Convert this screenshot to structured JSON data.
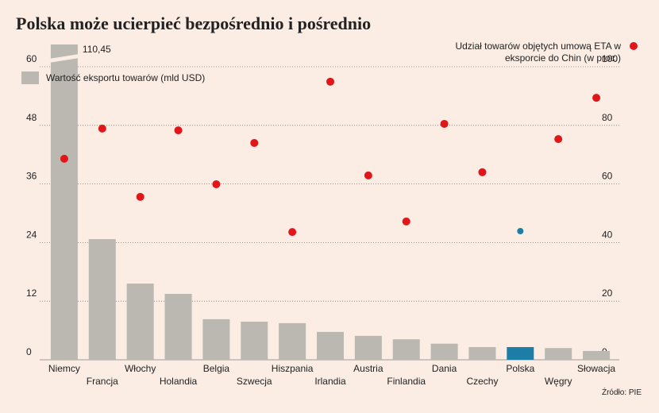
{
  "chart_data": {
    "type": "bar",
    "title": "Polska może ucierpieć bezpośrednio i pośrednio",
    "source": "Źródło: PIE",
    "categories": [
      "Niemcy",
      "Francja",
      "Włochy",
      "Holandia",
      "Belgia",
      "Szwecja",
      "Hiszpania",
      "Irlandia",
      "Austria",
      "Finlandia",
      "Dania",
      "Czechy",
      "Polska",
      "Węgry",
      "Słowacja"
    ],
    "series": [
      {
        "name": "Wartość eksportu towarów (mld USD)",
        "type": "bar",
        "axis": "y",
        "color": "#bab8b0",
        "colors": [
          "#bab8b0",
          "#bab8b0",
          "#bab8b0",
          "#bab8b0",
          "#bab8b0",
          "#bab8b0",
          "#bab8b0",
          "#bab8b0",
          "#bab8b0",
          "#bab8b0",
          "#bab8b0",
          "#bab8b0",
          "#1c7ea6",
          "#bab8b0",
          "#bab8b0"
        ],
        "values": [
          110.45,
          24.7,
          15.6,
          13.5,
          8.3,
          7.8,
          7.5,
          5.7,
          4.9,
          4.2,
          3.3,
          2.6,
          2.6,
          2.4,
          1.8
        ],
        "value_labels": [
          "110,45",
          null,
          null,
          null,
          null,
          null,
          null,
          null,
          null,
          null,
          null,
          null,
          null,
          null,
          null
        ]
      },
      {
        "name": "Udział towarów objętych umową ETA w eksporcie do Chin (w proc.)",
        "type": "scatter",
        "axis": "y2",
        "color": "#e0161b",
        "colors": [
          "#e0161b",
          "#e0161b",
          "#e0161b",
          "#e0161b",
          "#e0161b",
          "#e0161b",
          "#e0161b",
          "#e0161b",
          "#e0161b",
          "#e0161b",
          "#e0161b",
          "#e0161b",
          "#1c7ea6",
          "#e0161b",
          "#e0161b"
        ],
        "values": [
          68.6,
          78.9,
          55.6,
          78.3,
          59.9,
          74.0,
          43.6,
          94.9,
          62.9,
          47.2,
          80.5,
          64.0,
          43.9,
          75.3,
          89.4
        ]
      }
    ],
    "ylim": [
      0,
      60
    ],
    "yticks": [
      0,
      12,
      24,
      36,
      48,
      60
    ],
    "y2lim": [
      0,
      100
    ],
    "y2ticks": [
      0,
      20,
      40,
      60,
      80,
      100
    ],
    "grid": true
  }
}
